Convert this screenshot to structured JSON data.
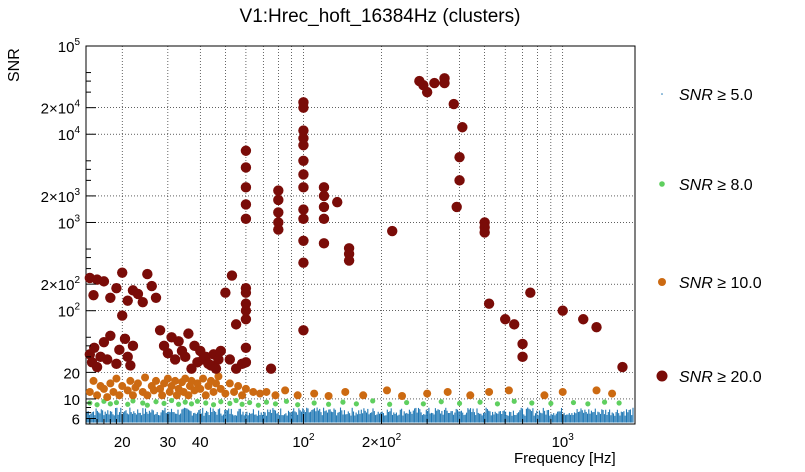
{
  "chart_data": {
    "type": "scatter",
    "title": "V1:Hrec_hoft_16384Hz (clusters)",
    "xlabel": "Frequency [Hz]",
    "ylabel": "SNR",
    "xscale": "log",
    "yscale": "log",
    "xlim": [
      14.5,
      1900
    ],
    "ylim": [
      5.2,
      100000
    ],
    "x_ticks": [
      {
        "value": 20,
        "label": "20"
      },
      {
        "value": 30,
        "label": "30"
      },
      {
        "value": 40,
        "label": "40"
      },
      {
        "value": 100,
        "label": "10",
        "exp": "2"
      },
      {
        "value": 200,
        "label": "2×10",
        "exp": "2"
      },
      {
        "value": 1000,
        "label": "10",
        "exp": "3"
      }
    ],
    "y_ticks": [
      {
        "value": 6,
        "label": "6"
      },
      {
        "value": 10,
        "label": "10"
      },
      {
        "value": 20,
        "label": "20"
      },
      {
        "value": 100,
        "label": "10",
        "exp": "2"
      },
      {
        "value": 200,
        "label": "2×10",
        "exp": "2"
      },
      {
        "value": 1000,
        "label": "10",
        "exp": "3"
      },
      {
        "value": 2000,
        "label": "2×10",
        "exp": "3"
      },
      {
        "value": 10000,
        "label": "10",
        "exp": "4"
      },
      {
        "value": 20000,
        "label": "2×10",
        "exp": "4"
      },
      {
        "value": 100000,
        "label": "10",
        "exp": "5"
      }
    ],
    "grid": true,
    "legend_position": "right",
    "series": [
      {
        "name": "SNR ≥ 5.0",
        "label_main": "SNR",
        "label_rest": " ≥ 5.0",
        "color": "#1f77b4",
        "marker": "tiny",
        "band": {
          "ymin": 5.4,
          "ymax": 8.0
        }
      },
      {
        "name": "SNR ≥ 8.0",
        "label_main": "SNR",
        "label_rest": " ≥ 8.0",
        "color": "#5fcf5f",
        "marker": "small",
        "points": [
          [
            15,
            9
          ],
          [
            16,
            8.6
          ],
          [
            17,
            9.4
          ],
          [
            18,
            8.8
          ],
          [
            19,
            9.1
          ],
          [
            21,
            8.7
          ],
          [
            22,
            9.5
          ],
          [
            24,
            9
          ],
          [
            25,
            8.5
          ],
          [
            27,
            9.3
          ],
          [
            29,
            8.9
          ],
          [
            31,
            9.6
          ],
          [
            33,
            8.7
          ],
          [
            35,
            9.2
          ],
          [
            37,
            8.8
          ],
          [
            39,
            9.4
          ],
          [
            42,
            9
          ],
          [
            45,
            8.6
          ],
          [
            48,
            9.3
          ],
          [
            52,
            8.9
          ],
          [
            55,
            9.6
          ],
          [
            58,
            8.7
          ],
          [
            62,
            9.1
          ],
          [
            67,
            8.5
          ],
          [
            72,
            9.2
          ],
          [
            78,
            8.8
          ],
          [
            86,
            9.4
          ],
          [
            95,
            8.6
          ],
          [
            110,
            9
          ],
          [
            125,
            8.7
          ],
          [
            142,
            9.2
          ],
          [
            160,
            8.8
          ],
          [
            185,
            9.5
          ],
          [
            215,
            8.7
          ],
          [
            250,
            9.1
          ],
          [
            290,
            8.8
          ],
          [
            340,
            9.3
          ],
          [
            400,
            8.9
          ],
          [
            480,
            9.2
          ],
          [
            560,
            8.8
          ],
          [
            650,
            9.4
          ],
          [
            760,
            9
          ],
          [
            900,
            8.9
          ],
          [
            1100,
            9.1
          ],
          [
            1250,
            8.8
          ],
          [
            1450,
            9.2
          ],
          [
            1650,
            9
          ]
        ]
      },
      {
        "name": "SNR ≥ 10.0",
        "label_main": "SNR",
        "label_rest": " ≥ 10.0",
        "color": "#cc6a12",
        "marker": "medium",
        "points": [
          [
            15,
            12
          ],
          [
            15.5,
            16
          ],
          [
            16,
            11
          ],
          [
            16.5,
            14
          ],
          [
            17,
            13
          ],
          [
            17.5,
            10.5
          ],
          [
            18,
            15
          ],
          [
            18.5,
            12
          ],
          [
            19,
            17
          ],
          [
            19.5,
            11
          ],
          [
            20,
            14
          ],
          [
            21,
            12.5
          ],
          [
            21.5,
            16
          ],
          [
            22,
            11
          ],
          [
            22.5,
            13.5
          ],
          [
            23,
            15
          ],
          [
            24,
            12
          ],
          [
            24.5,
            17.5
          ],
          [
            25,
            11
          ],
          [
            26,
            14
          ],
          [
            26.5,
            12.5
          ],
          [
            27,
            16
          ],
          [
            28,
            13
          ],
          [
            28.5,
            11
          ],
          [
            29,
            15
          ],
          [
            30,
            17
          ],
          [
            30.5,
            12
          ],
          [
            31,
            14
          ],
          [
            32,
            16
          ],
          [
            32.5,
            11
          ],
          [
            33,
            13
          ],
          [
            34,
            15.5
          ],
          [
            34.5,
            12
          ],
          [
            35,
            17
          ],
          [
            36,
            11
          ],
          [
            36.5,
            14
          ],
          [
            37,
            16
          ],
          [
            38,
            12.5
          ],
          [
            39,
            15
          ],
          [
            40,
            13
          ],
          [
            41,
            17
          ],
          [
            42,
            11
          ],
          [
            43,
            14
          ],
          [
            44,
            16
          ],
          [
            45,
            12
          ],
          [
            46,
            15
          ],
          [
            47,
            18
          ],
          [
            48,
            13
          ],
          [
            50,
            11.5
          ],
          [
            52,
            15
          ],
          [
            54,
            12
          ],
          [
            56,
            14
          ],
          [
            58,
            11
          ],
          [
            60,
            13
          ],
          [
            64,
            12
          ],
          [
            68,
            11.5
          ],
          [
            72,
            12
          ],
          [
            78,
            11
          ],
          [
            85,
            12.5
          ],
          [
            95,
            11
          ],
          [
            110,
            11.5
          ],
          [
            125,
            10.8
          ],
          [
            145,
            12
          ],
          [
            170,
            11
          ],
          [
            210,
            12.5
          ],
          [
            240,
            10.8
          ],
          [
            300,
            11.5
          ],
          [
            360,
            12
          ],
          [
            440,
            11
          ],
          [
            520,
            12
          ],
          [
            620,
            12.5
          ],
          [
            850,
            11
          ],
          [
            1000,
            12
          ],
          [
            1350,
            12.5
          ],
          [
            1550,
            11.5
          ]
        ]
      },
      {
        "name": "SNR ≥ 20.0",
        "label_main": "SNR",
        "label_rest": " ≥ 20.0",
        "color": "#7a0c08",
        "marker": "large",
        "points": [
          [
            15,
            32
          ],
          [
            15.3,
            26
          ],
          [
            15.6,
            38
          ],
          [
            16,
            23
          ],
          [
            16.5,
            30
          ],
          [
            17,
            44
          ],
          [
            17.5,
            28
          ],
          [
            18,
            52
          ],
          [
            19,
            25
          ],
          [
            19.5,
            36
          ],
          [
            20,
            88
          ],
          [
            20.5,
            48
          ],
          [
            21,
            30
          ],
          [
            21.5,
            24
          ],
          [
            22,
            40
          ],
          [
            15,
            235
          ],
          [
            16,
            225
          ],
          [
            15.5,
            150
          ],
          [
            17,
            215
          ],
          [
            18,
            140
          ],
          [
            19,
            180
          ],
          [
            20,
            270
          ],
          [
            21,
            130
          ],
          [
            22,
            170
          ],
          [
            23,
            155
          ],
          [
            24,
            125
          ],
          [
            25,
            260
          ],
          [
            26,
            190
          ],
          [
            27,
            140
          ],
          [
            28,
            60
          ],
          [
            29,
            40
          ],
          [
            30,
            33
          ],
          [
            31,
            50
          ],
          [
            32,
            28
          ],
          [
            33,
            45
          ],
          [
            34,
            35
          ],
          [
            35,
            30
          ],
          [
            36,
            55
          ],
          [
            37,
            22
          ],
          [
            38,
            40
          ],
          [
            39,
            26
          ],
          [
            40,
            35
          ],
          [
            41,
            28
          ],
          [
            42,
            30
          ],
          [
            43,
            25
          ],
          [
            44,
            24
          ],
          [
            45,
            32
          ],
          [
            46,
            22
          ],
          [
            47,
            28
          ],
          [
            48,
            35
          ],
          [
            50,
            160
          ],
          [
            52,
            28
          ],
          [
            55,
            22
          ],
          [
            58,
            25
          ],
          [
            60,
            180
          ],
          [
            60,
            160
          ],
          [
            60,
            120
          ],
          [
            60,
            100
          ],
          [
            60,
            80
          ],
          [
            60,
            38
          ],
          [
            60,
            26
          ],
          [
            53,
            250
          ],
          [
            55,
            70
          ],
          [
            60,
            6500
          ],
          [
            60,
            4200
          ],
          [
            60,
            2500
          ],
          [
            60,
            1600
          ],
          [
            60,
            1100
          ],
          [
            75,
            22
          ],
          [
            80,
            2300
          ],
          [
            80,
            1800
          ],
          [
            80,
            1300
          ],
          [
            80,
            1000
          ],
          [
            80,
            830
          ],
          [
            100,
            23000
          ],
          [
            100,
            20000
          ],
          [
            100,
            11000
          ],
          [
            100,
            9000
          ],
          [
            100,
            7500
          ],
          [
            100,
            5000
          ],
          [
            100,
            3500
          ],
          [
            100,
            2500
          ],
          [
            100,
            1400
          ],
          [
            100,
            1100
          ],
          [
            100,
            620
          ],
          [
            100,
            350
          ],
          [
            100,
            60
          ],
          [
            120,
            2500
          ],
          [
            120,
            2000
          ],
          [
            120,
            1500
          ],
          [
            120,
            1100
          ],
          [
            120,
            580
          ],
          [
            135,
            1700
          ],
          [
            150,
            510
          ],
          [
            150,
            440
          ],
          [
            150,
            370
          ],
          [
            220,
            800
          ],
          [
            280,
            40000
          ],
          [
            290,
            36000
          ],
          [
            320,
            38000
          ],
          [
            350,
            43000
          ],
          [
            300,
            30000
          ],
          [
            350,
            38000
          ],
          [
            380,
            22000
          ],
          [
            410,
            12000
          ],
          [
            400,
            5500
          ],
          [
            400,
            3000
          ],
          [
            390,
            1500
          ],
          [
            500,
            1000
          ],
          [
            500,
            880
          ],
          [
            500,
            770
          ],
          [
            520,
            120
          ],
          [
            600,
            80
          ],
          [
            650,
            70
          ],
          [
            700,
            42
          ],
          [
            700,
            30
          ],
          [
            750,
            160
          ],
          [
            1000,
            100
          ],
          [
            1200,
            80
          ],
          [
            1350,
            65
          ],
          [
            1700,
            23
          ]
        ]
      }
    ]
  }
}
